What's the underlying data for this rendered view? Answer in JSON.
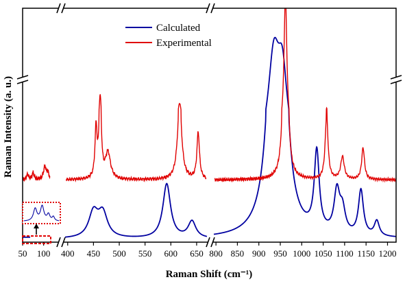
{
  "chart_data": {
    "type": "line",
    "xlabel": "Raman Shift (cm⁻¹)",
    "ylabel": "Raman Intensity (a. u.)",
    "x_axis_broken": true,
    "y_axis_broken": true,
    "grid": false,
    "legend_position": "top-left",
    "segments": [
      {
        "xlim": [
          50,
          130
        ],
        "ticks": [
          50,
          100
        ]
      },
      {
        "xlim": [
          395,
          670
        ],
        "ticks": [
          400,
          450,
          500,
          550,
          600,
          650
        ]
      },
      {
        "xlim": [
          795,
          1220
        ],
        "ticks": [
          800,
          850,
          900,
          950,
          1000,
          1050,
          1100,
          1150,
          1200
        ]
      }
    ],
    "series": [
      {
        "name": "Calculated",
        "color": "#0000a0",
        "baseline": 0,
        "peaks_left": [],
        "peaks_mid": [
          {
            "x": 450,
            "height": 0.33,
            "width": 11
          },
          {
            "x": 468,
            "height": 0.32,
            "width": 11
          },
          {
            "x": 592,
            "height": 0.72,
            "width": 9
          },
          {
            "x": 641,
            "height": 0.22,
            "width": 9
          }
        ],
        "peaks_right": [
          {
            "x": 935,
            "height": 3.2,
            "width": 16
          },
          {
            "x": 955,
            "height": 2.4,
            "width": 13
          },
          {
            "x": 1035,
            "height": 1.05,
            "width": 7
          },
          {
            "x": 1082,
            "height": 0.55,
            "width": 8
          },
          {
            "x": 1095,
            "height": 0.3,
            "width": 8
          },
          {
            "x": 1138,
            "height": 0.6,
            "width": 7
          },
          {
            "x": 1175,
            "height": 0.2,
            "width": 7
          }
        ]
      },
      {
        "name": "Experimental",
        "color": "#e00000",
        "baseline": 0.78,
        "peaks_left": [
          {
            "x": 62,
            "height": 0.07,
            "width": 3
          },
          {
            "x": 75,
            "height": 0.09,
            "width": 3
          },
          {
            "x": 103,
            "height": 0.17,
            "width": 4
          },
          {
            "x": 110,
            "height": 0.08,
            "width": 3
          }
        ],
        "peaks_mid": [
          {
            "x": 455,
            "height": 0.65,
            "width": 2.5
          },
          {
            "x": 463,
            "height": 1.2,
            "width": 2.5
          },
          {
            "x": 478,
            "height": 0.35,
            "width": 6
          },
          {
            "x": 617,
            "height": 1.02,
            "width": 5
          },
          {
            "x": 653,
            "height": 0.62,
            "width": 3
          }
        ],
        "peaks_right": [
          {
            "x": 962,
            "height": 4.6,
            "width": 4
          },
          {
            "x": 1058,
            "height": 0.85,
            "width": 4
          },
          {
            "x": 1095,
            "height": 0.3,
            "width": 5
          },
          {
            "x": 1143,
            "height": 0.42,
            "width": 4
          }
        ]
      }
    ]
  }
}
